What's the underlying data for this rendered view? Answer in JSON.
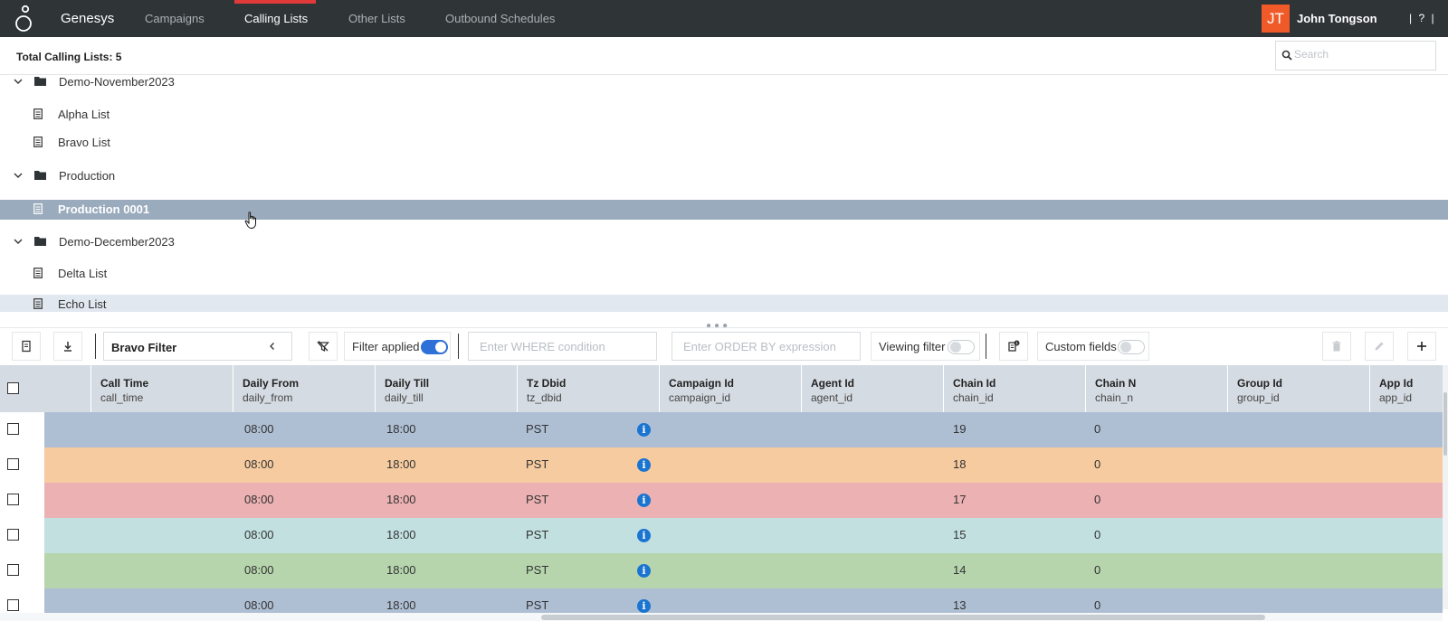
{
  "header": {
    "brand": "Genesys",
    "tabs": [
      {
        "label": "Campaigns",
        "active": false
      },
      {
        "label": "Calling Lists",
        "active": true
      },
      {
        "label": "Other Lists",
        "active": false
      },
      {
        "label": "Outbound Schedules",
        "active": false
      }
    ],
    "user": {
      "initials": "JT",
      "name": "John Tongson"
    },
    "help_label": "| ? |",
    "accent_color": "#e03a3a"
  },
  "subheader": {
    "total_label": "Total Calling Lists: 5",
    "search_placeholder": "Search"
  },
  "tree": {
    "items": [
      {
        "type": "folder",
        "label": "Demo-November2023",
        "expanded": true
      },
      {
        "type": "list",
        "label": "Alpha List"
      },
      {
        "type": "list",
        "label": "Bravo List"
      },
      {
        "type": "folder",
        "label": "Production",
        "expanded": true
      },
      {
        "type": "list",
        "label": "Production 0001",
        "selected": true
      },
      {
        "type": "folder",
        "label": "Demo-December2023",
        "expanded": true
      },
      {
        "type": "list",
        "label": "Delta List"
      },
      {
        "type": "list",
        "label": "Echo List",
        "hovered": true
      }
    ]
  },
  "toolbar": {
    "filter_name": "Bravo Filter",
    "filter_applied_label": "Filter applied",
    "filter_applied": true,
    "where_placeholder": "Enter WHERE condition",
    "orderby_placeholder": "Enter ORDER BY expression",
    "viewing_filter_label": "Viewing filter",
    "viewing_filter": false,
    "custom_fields_label": "Custom fields",
    "custom_fields": false
  },
  "grid": {
    "columns": [
      {
        "title": "Call Time",
        "field": "call_time"
      },
      {
        "title": "Daily From",
        "field": "daily_from"
      },
      {
        "title": "Daily Till",
        "field": "daily_till"
      },
      {
        "title": "Tz Dbid",
        "field": "tz_dbid"
      },
      {
        "title": "Campaign Id",
        "field": "campaign_id"
      },
      {
        "title": "Agent Id",
        "field": "agent_id"
      },
      {
        "title": "Chain Id",
        "field": "chain_id"
      },
      {
        "title": "Chain N",
        "field": "chain_n"
      },
      {
        "title": "Group Id",
        "field": "group_id"
      },
      {
        "title": "App Id",
        "field": "app_id"
      }
    ],
    "rows": [
      {
        "color": "#aebed3",
        "daily_from": "08:00",
        "daily_till": "18:00",
        "tz_dbid": "PST",
        "chain_id": "19",
        "chain_n": "0"
      },
      {
        "color": "#f6cba0",
        "daily_from": "08:00",
        "daily_till": "18:00",
        "tz_dbid": "PST",
        "chain_id": "18",
        "chain_n": "0"
      },
      {
        "color": "#ecb1b3",
        "daily_from": "08:00",
        "daily_till": "18:00",
        "tz_dbid": "PST",
        "chain_id": "17",
        "chain_n": "0"
      },
      {
        "color": "#c2e0e0",
        "daily_from": "08:00",
        "daily_till": "18:00",
        "tz_dbid": "PST",
        "chain_id": "15",
        "chain_n": "0"
      },
      {
        "color": "#b6d5ad",
        "daily_from": "08:00",
        "daily_till": "18:00",
        "tz_dbid": "PST",
        "chain_id": "14",
        "chain_n": "0"
      },
      {
        "color": "#aebed3",
        "daily_from": "08:00",
        "daily_till": "18:00",
        "tz_dbid": "PST",
        "chain_id": "13",
        "chain_n": "0"
      }
    ],
    "info_icon": "i"
  }
}
